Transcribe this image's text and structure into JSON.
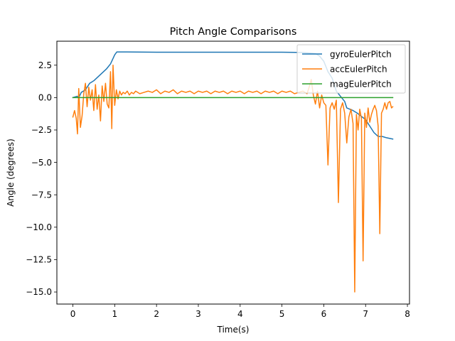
{
  "chart_data": {
    "type": "line",
    "title": "Pitch Angle Comparisons",
    "xlabel": "Time(s)",
    "ylabel": "Angle (degrees)",
    "xlim": [
      -0.383,
      8.05
    ],
    "ylim": [
      -15.93,
      4.35
    ],
    "xticks": [
      0,
      1,
      2,
      3,
      4,
      5,
      6,
      7,
      8
    ],
    "xtick_labels": [
      "0",
      "1",
      "2",
      "3",
      "4",
      "5",
      "6",
      "7",
      "8"
    ],
    "yticks": [
      2.5,
      0.0,
      -2.5,
      -5.0,
      -7.5,
      -10.0,
      -12.5,
      -15.0
    ],
    "ytick_labels": [
      "2.5",
      "0.0",
      "−2.5",
      "−5.0",
      "−7.5",
      "−10.0",
      "−12.5",
      "−15.0"
    ],
    "grid": false,
    "legend_position": "top-right",
    "series": [
      {
        "name": "gyroEulerPitch",
        "color": "#1f77b4",
        "points": [
          [
            0.0,
            0.0
          ],
          [
            0.1,
            0.1
          ],
          [
            0.15,
            0.05
          ],
          [
            0.2,
            0.4
          ],
          [
            0.3,
            0.6
          ],
          [
            0.4,
            1.1
          ],
          [
            0.5,
            1.3
          ],
          [
            0.6,
            1.6
          ],
          [
            0.7,
            1.9
          ],
          [
            0.8,
            2.2
          ],
          [
            0.9,
            2.6
          ],
          [
            1.0,
            3.3
          ],
          [
            1.05,
            3.52
          ],
          [
            1.3,
            3.52
          ],
          [
            2.0,
            3.5
          ],
          [
            3.0,
            3.5
          ],
          [
            4.0,
            3.5
          ],
          [
            5.0,
            3.5
          ],
          [
            5.5,
            3.48
          ],
          [
            5.8,
            3.4
          ],
          [
            5.9,
            3.2
          ],
          [
            6.0,
            2.8
          ],
          [
            6.1,
            2.0
          ],
          [
            6.2,
            1.5
          ],
          [
            6.3,
            0.5
          ],
          [
            6.4,
            0.1
          ],
          [
            6.5,
            -0.3
          ],
          [
            6.55,
            -0.8
          ],
          [
            6.7,
            -1.0
          ],
          [
            6.8,
            -1.2
          ],
          [
            7.0,
            -1.7
          ],
          [
            7.1,
            -2.2
          ],
          [
            7.2,
            -2.7
          ],
          [
            7.3,
            -3.0
          ],
          [
            7.4,
            -3.0
          ],
          [
            7.5,
            -3.1
          ],
          [
            7.65,
            -3.2
          ]
        ]
      },
      {
        "name": "accEulerPitch",
        "color": "#ff7f0e",
        "points": [
          [
            0.0,
            -1.5
          ],
          [
            0.04,
            -1.0
          ],
          [
            0.08,
            -1.6
          ],
          [
            0.11,
            -2.8
          ],
          [
            0.14,
            0.7
          ],
          [
            0.18,
            -2.3
          ],
          [
            0.22,
            -1.4
          ],
          [
            0.26,
            0.3
          ],
          [
            0.3,
            1.1
          ],
          [
            0.34,
            -0.7
          ],
          [
            0.38,
            0.8
          ],
          [
            0.42,
            -0.2
          ],
          [
            0.46,
            0.6
          ],
          [
            0.5,
            -1.0
          ],
          [
            0.54,
            1.0
          ],
          [
            0.58,
            -0.9
          ],
          [
            0.62,
            0.2
          ],
          [
            0.66,
            -1.8
          ],
          [
            0.7,
            0.9
          ],
          [
            0.74,
            -0.3
          ],
          [
            0.78,
            1.1
          ],
          [
            0.82,
            -0.5
          ],
          [
            0.86,
            -0.8
          ],
          [
            0.9,
            2.0
          ],
          [
            0.93,
            -2.4
          ],
          [
            0.96,
            2.5
          ],
          [
            1.0,
            -0.6
          ],
          [
            1.04,
            0.6
          ],
          [
            1.08,
            -0.1
          ],
          [
            1.12,
            0.5
          ],
          [
            1.16,
            0.2
          ],
          [
            1.2,
            0.4
          ],
          [
            1.25,
            0.3
          ],
          [
            1.3,
            0.5
          ],
          [
            1.35,
            0.2
          ],
          [
            1.4,
            0.4
          ],
          [
            1.45,
            0.3
          ],
          [
            1.5,
            0.5
          ],
          [
            1.6,
            0.3
          ],
          [
            1.7,
            0.4
          ],
          [
            1.8,
            0.5
          ],
          [
            1.9,
            0.4
          ],
          [
            2.0,
            0.6
          ],
          [
            2.1,
            0.3
          ],
          [
            2.2,
            0.5
          ],
          [
            2.3,
            0.4
          ],
          [
            2.4,
            0.6
          ],
          [
            2.5,
            0.3
          ],
          [
            2.6,
            0.5
          ],
          [
            2.7,
            0.4
          ],
          [
            2.8,
            0.5
          ],
          [
            2.9,
            0.3
          ],
          [
            3.0,
            0.5
          ],
          [
            3.1,
            0.4
          ],
          [
            3.2,
            0.5
          ],
          [
            3.3,
            0.3
          ],
          [
            3.4,
            0.5
          ],
          [
            3.5,
            0.4
          ],
          [
            3.6,
            0.5
          ],
          [
            3.7,
            0.3
          ],
          [
            3.8,
            0.5
          ],
          [
            3.9,
            0.4
          ],
          [
            4.0,
            0.5
          ],
          [
            4.1,
            0.3
          ],
          [
            4.2,
            0.5
          ],
          [
            4.3,
            0.4
          ],
          [
            4.4,
            0.5
          ],
          [
            4.5,
            0.3
          ],
          [
            4.6,
            0.5
          ],
          [
            4.7,
            0.4
          ],
          [
            4.8,
            0.5
          ],
          [
            4.9,
            0.3
          ],
          [
            5.0,
            0.5
          ],
          [
            5.1,
            0.4
          ],
          [
            5.2,
            0.5
          ],
          [
            5.3,
            0.3
          ],
          [
            5.4,
            0.4
          ],
          [
            5.5,
            0.5
          ],
          [
            5.6,
            0.3
          ],
          [
            5.65,
            0.8
          ],
          [
            5.7,
            1.4
          ],
          [
            5.75,
            0.2
          ],
          [
            5.8,
            -0.5
          ],
          [
            5.85,
            0.5
          ],
          [
            5.9,
            -0.8
          ],
          [
            5.95,
            0.2
          ],
          [
            6.0,
            -0.4
          ],
          [
            6.05,
            -0.6
          ],
          [
            6.1,
            -5.2
          ],
          [
            6.15,
            -0.8
          ],
          [
            6.2,
            -0.4
          ],
          [
            6.25,
            -0.9
          ],
          [
            6.3,
            -0.2
          ],
          [
            6.35,
            -8.1
          ],
          [
            6.4,
            -0.9
          ],
          [
            6.45,
            -0.4
          ],
          [
            6.5,
            -1.2
          ],
          [
            6.55,
            -3.5
          ],
          [
            6.6,
            -1.5
          ],
          [
            6.65,
            -0.9
          ],
          [
            6.7,
            -2.0
          ],
          [
            6.74,
            -15.0
          ],
          [
            6.78,
            -1.3
          ],
          [
            6.82,
            -2.5
          ],
          [
            6.86,
            -0.9
          ],
          [
            6.9,
            -1.6
          ],
          [
            6.94,
            -12.6
          ],
          [
            6.98,
            -1.2
          ],
          [
            7.02,
            -2.3
          ],
          [
            7.06,
            -0.8
          ],
          [
            7.1,
            -1.9
          ],
          [
            7.14,
            -1.3
          ],
          [
            7.18,
            -0.9
          ],
          [
            7.22,
            -0.6
          ],
          [
            7.26,
            -1.0
          ],
          [
            7.3,
            -2.2
          ],
          [
            7.34,
            -10.5
          ],
          [
            7.38,
            -1.2
          ],
          [
            7.42,
            -0.9
          ],
          [
            7.46,
            -0.4
          ],
          [
            7.5,
            -0.9
          ],
          [
            7.54,
            -0.4
          ],
          [
            7.58,
            -0.3
          ],
          [
            7.62,
            -0.8
          ],
          [
            7.65,
            -0.7
          ]
        ]
      },
      {
        "name": "magEulerPitch",
        "color": "#2ca02c",
        "points": [
          [
            0.0,
            0.0
          ],
          [
            7.65,
            0.0
          ]
        ]
      }
    ]
  }
}
